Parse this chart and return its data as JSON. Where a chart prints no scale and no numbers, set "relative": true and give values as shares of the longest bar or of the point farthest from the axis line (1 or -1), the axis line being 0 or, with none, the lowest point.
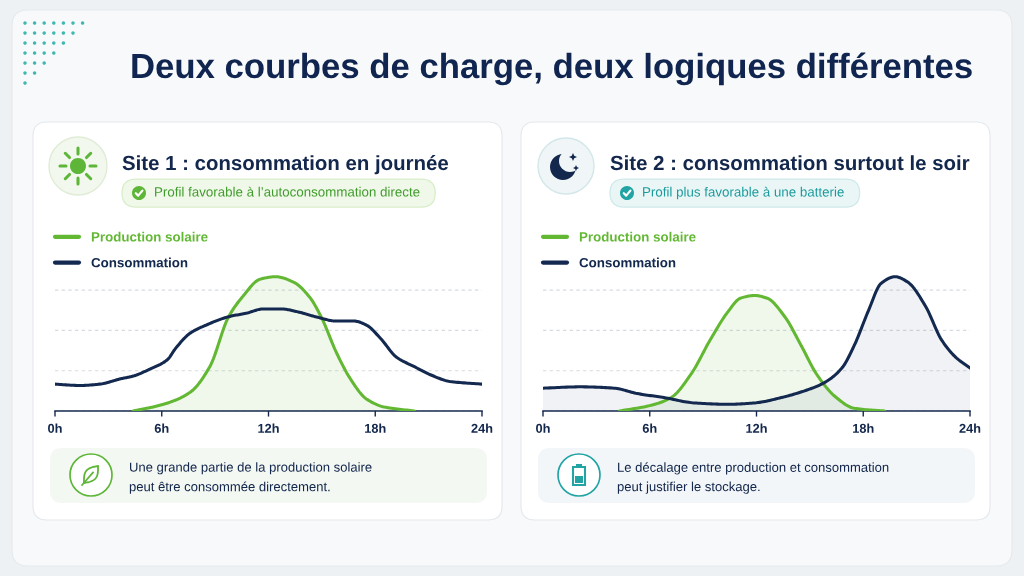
{
  "chart_data": [
    {
      "type": "other",
      "title": "Deux courbes de charge, deux logiques différentes"
    },
    {
      "type": "line",
      "title": "Site 1 : consommation en journée",
      "subtitle": "Profil favorable à l’autoconsommation directe",
      "relative": true,
      "xlim": [
        0,
        24
      ],
      "xticks": [
        {
          "value": 0,
          "label": "0h"
        },
        {
          "value": 6,
          "label": "6h"
        },
        {
          "value": 12,
          "label": "12h"
        },
        {
          "value": 18,
          "label": "18h"
        },
        {
          "value": 24,
          "label": "24h"
        }
      ],
      "grid": "y",
      "legend": "top left",
      "series": [
        {
          "name": "Production solaire",
          "type": "area",
          "color": "#62b833",
          "x": [
            4.4,
            6.1,
            7.6,
            8.7,
            9.75,
            10.6,
            11.5,
            12.4,
            13.4,
            14.3,
            15.0,
            15.8,
            16.6,
            17.5,
            18.5,
            20.2
          ],
          "values": [
            0,
            0.05,
            0.14,
            0.33,
            0.7,
            0.86,
            0.98,
            1,
            0.96,
            0.85,
            0.69,
            0.44,
            0.24,
            0.09,
            0.03,
            0
          ]
        },
        {
          "name": "Consommation",
          "type": "line",
          "color": "#14294f",
          "x": [
            0,
            1.4,
            2.5,
            3.7,
            4.4,
            5.3,
            6.3,
            6.8,
            7.6,
            8.5,
            9.7,
            10.8,
            11.7,
            12.7,
            13.6,
            14.7,
            15.8,
            16.8,
            17.5,
            18.3,
            19.2,
            20.2,
            21.1,
            22.2,
            24
          ],
          "values": [
            0.2,
            0.19,
            0.2,
            0.24,
            0.26,
            0.31,
            0.38,
            0.47,
            0.58,
            0.64,
            0.7,
            0.73,
            0.76,
            0.76,
            0.74,
            0.7,
            0.67,
            0.67,
            0.64,
            0.54,
            0.4,
            0.33,
            0.27,
            0.22,
            0.2
          ]
        }
      ],
      "annotations": [
        "Une grande partie de la production solaire\npeut être consommée directement."
      ]
    },
    {
      "type": "line",
      "title": "Site 2 : consommation surtout le soir",
      "subtitle": "Profil plus favorable à une batterie",
      "relative": true,
      "xlim": [
        0,
        24
      ],
      "xticks": [
        {
          "value": 0,
          "label": "0h"
        },
        {
          "value": 6,
          "label": "6h"
        },
        {
          "value": 12,
          "label": "12h"
        },
        {
          "value": 18,
          "label": "18h"
        },
        {
          "value": 24,
          "label": "24h"
        }
      ],
      "grid": "y",
      "legend": "top left",
      "series": [
        {
          "name": "Production solaire",
          "type": "area",
          "color": "#62b833",
          "x": [
            4.3,
            6.0,
            7.2,
            8.3,
            9.4,
            10.4,
            11.1,
            11.9,
            12.6,
            13.6,
            14.5,
            15.4,
            16.4,
            17.5,
            19.2
          ],
          "values": [
            0,
            0.04,
            0.1,
            0.27,
            0.53,
            0.74,
            0.84,
            0.86,
            0.84,
            0.7,
            0.49,
            0.27,
            0.11,
            0.02,
            0
          ]
        },
        {
          "name": "Consommation",
          "type": "area",
          "color": "#14294f",
          "x": [
            0,
            2.1,
            4.0,
            5.3,
            6.8,
            8.5,
            10.4,
            11.9,
            13.4,
            14.7,
            15.8,
            16.8,
            17.5,
            18.3,
            19.0,
            19.8,
            20.5,
            21.5,
            22.4,
            23.2,
            24
          ],
          "values": [
            0.17,
            0.18,
            0.17,
            0.13,
            0.1,
            0.06,
            0.05,
            0.06,
            0.1,
            0.15,
            0.21,
            0.32,
            0.49,
            0.75,
            0.95,
            1,
            0.96,
            0.78,
            0.53,
            0.4,
            0.32
          ]
        }
      ],
      "annotations": [
        "Le décalage entre production et consommation\npeut justifier le stockage."
      ]
    }
  ]
}
